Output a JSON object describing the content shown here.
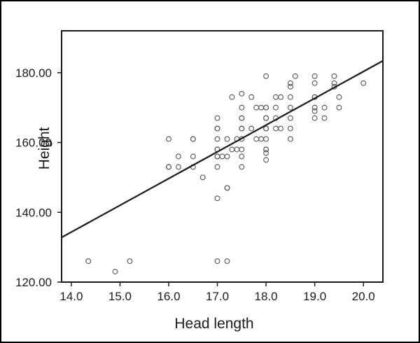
{
  "chart_data": {
    "type": "scatter",
    "xlabel": "Head length",
    "ylabel": "Height",
    "xlim": [
      13.8,
      20.4
    ],
    "ylim": [
      120,
      192
    ],
    "xticks": [
      "14.0",
      "15.0",
      "16.0",
      "17.0",
      "18.0",
      "19.0",
      "20.0"
    ],
    "yticks": [
      "120.00",
      "140.00",
      "160.00",
      "180.00"
    ],
    "grid": false,
    "series": [
      {
        "points": [
          [
            14.35,
            126
          ],
          [
            14.9,
            123
          ],
          [
            15.2,
            126
          ],
          [
            16.0,
            161
          ],
          [
            16.0,
            153
          ],
          [
            16.0,
            153
          ],
          [
            16.2,
            156
          ],
          [
            16.2,
            153
          ],
          [
            16.5,
            161
          ],
          [
            16.5,
            161
          ],
          [
            16.5,
            156
          ],
          [
            16.5,
            153
          ],
          [
            16.7,
            150
          ],
          [
            17.0,
            167
          ],
          [
            17.0,
            164
          ],
          [
            17.0,
            164
          ],
          [
            17.0,
            161
          ],
          [
            17.0,
            158
          ],
          [
            17.0,
            158
          ],
          [
            17.0,
            156
          ],
          [
            17.0,
            156
          ],
          [
            17.0,
            153
          ],
          [
            17.0,
            144
          ],
          [
            17.0,
            126
          ],
          [
            17.1,
            156
          ],
          [
            17.2,
            161
          ],
          [
            17.2,
            156
          ],
          [
            17.2,
            147
          ],
          [
            17.2,
            147
          ],
          [
            17.2,
            126
          ],
          [
            17.3,
            173
          ],
          [
            17.3,
            158
          ],
          [
            17.4,
            161
          ],
          [
            17.4,
            158
          ],
          [
            17.5,
            174
          ],
          [
            17.5,
            170
          ],
          [
            17.5,
            167
          ],
          [
            17.5,
            167
          ],
          [
            17.5,
            164
          ],
          [
            17.5,
            164
          ],
          [
            17.5,
            161
          ],
          [
            17.5,
            158
          ],
          [
            17.5,
            156
          ],
          [
            17.5,
            153
          ],
          [
            17.7,
            173
          ],
          [
            17.7,
            164
          ],
          [
            17.8,
            170
          ],
          [
            17.8,
            161
          ],
          [
            17.9,
            170
          ],
          [
            17.9,
            161
          ],
          [
            18.0,
            179
          ],
          [
            18.0,
            170
          ],
          [
            18.0,
            170
          ],
          [
            18.0,
            167
          ],
          [
            18.0,
            167
          ],
          [
            18.0,
            164
          ],
          [
            18.0,
            164
          ],
          [
            18.0,
            161
          ],
          [
            18.0,
            158
          ],
          [
            18.0,
            158
          ],
          [
            18.0,
            157
          ],
          [
            18.0,
            155
          ],
          [
            18.2,
            173
          ],
          [
            18.2,
            170
          ],
          [
            18.2,
            167
          ],
          [
            18.2,
            164
          ],
          [
            18.3,
            173
          ],
          [
            18.3,
            164
          ],
          [
            18.5,
            177
          ],
          [
            18.5,
            176
          ],
          [
            18.5,
            173
          ],
          [
            18.5,
            170
          ],
          [
            18.5,
            167
          ],
          [
            18.5,
            164
          ],
          [
            18.5,
            161
          ],
          [
            18.6,
            179
          ],
          [
            19.0,
            179
          ],
          [
            19.0,
            177
          ],
          [
            19.0,
            173
          ],
          [
            19.0,
            173
          ],
          [
            19.0,
            170
          ],
          [
            19.0,
            169
          ],
          [
            19.0,
            167
          ],
          [
            19.2,
            170
          ],
          [
            19.2,
            167
          ],
          [
            19.4,
            179
          ],
          [
            19.4,
            177
          ],
          [
            19.4,
            176
          ],
          [
            19.5,
            173
          ],
          [
            19.5,
            170
          ],
          [
            20.0,
            177
          ]
        ]
      }
    ],
    "fit_line": {
      "x": [
        13.8,
        20.4
      ],
      "y": [
        132.8,
        183.4
      ]
    },
    "colors": {
      "axis": "#1a1a1a",
      "line": "#1a1a1a",
      "point_stroke": "#555555",
      "background": "#ffffff"
    }
  }
}
